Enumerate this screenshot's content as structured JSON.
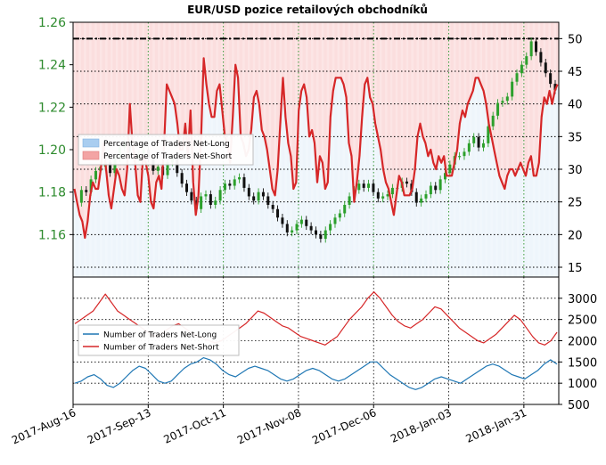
{
  "title": "EUR/USD pozice retailových obchodníků",
  "chart_data": [
    {
      "type": "line",
      "panel": "price-and-sentiment",
      "left_axis": {
        "ylim": [
          1.14,
          1.26
        ],
        "ticks": [
          1.16,
          1.18,
          1.2,
          1.22,
          1.24,
          1.26
        ],
        "tick_labels": [
          "1.16",
          "1.18",
          "1.20",
          "1.22",
          "1.24",
          "1.26"
        ],
        "color": "#2e8b2e"
      },
      "right_axis": {
        "ylim": [
          13.5,
          52.5
        ],
        "ticks": [
          15,
          20,
          25,
          30,
          35,
          40,
          45,
          50
        ],
        "tick_labels": [
          "15",
          "20",
          "25",
          "30",
          "35",
          "40",
          "45",
          "50"
        ]
      },
      "x": {
        "range": [
          "2017-08-16",
          "2018-02-13"
        ],
        "ticks": [
          "2017-08-16",
          "2017-09-13",
          "2017-10-11",
          "2017-11-08",
          "2017-12-06",
          "2018-01-03",
          "2018-01-31"
        ],
        "tick_labels": [
          "2017-Aug-16",
          "2017-Sep-13",
          "2017-Oct-11",
          "2017-Nov-08",
          "2017-Dec-06",
          "2018-Jan-03",
          "2018-Jan-31"
        ]
      },
      "reference_line": {
        "axis": "right",
        "value": 50
      },
      "grid": true,
      "legend": {
        "placement": "middle-left",
        "entries": [
          "Percentage of Traders Net-Long",
          "Percentage of Traders Net-Short"
        ],
        "colors": [
          "#a9cdf0",
          "#f3a4a4"
        ]
      },
      "series": [
        {
          "name": "Percentage of Traders Net-Short",
          "axis": "right",
          "color": "#d62728",
          "values": [
            29,
            28,
            26,
            24,
            22,
            20,
            19,
            18,
            21,
            24,
            27,
            30,
            28,
            25,
            23,
            21,
            20,
            22,
            25,
            28,
            31,
            34,
            33,
            30,
            28,
            26,
            24,
            22,
            20,
            21,
            23,
            22,
            24,
            27,
            32,
            37,
            42,
            38,
            35,
            33,
            31,
            29,
            27,
            30,
            32,
            29,
            23,
            30,
            33,
            37,
            40,
            38,
            35,
            33,
            31,
            30,
            28,
            28,
            32,
            36,
            40,
            35,
            33,
            31,
            29,
            27,
            26,
            30,
            33,
            36,
            35,
            32,
            29,
            27,
            26,
            28,
            31,
            34,
            33,
            30,
            26,
            24,
            28,
            31,
            33,
            35,
            37,
            40,
            43,
            42,
            40,
            38,
            36,
            34,
            32,
            30,
            28,
            26,
            24,
            22,
            24,
            26,
            27,
            27,
            27,
            28,
            30,
            32,
            34,
            32,
            30,
            29,
            30,
            31,
            32,
            31,
            29,
            30,
            30,
            31,
            39,
            41,
            40,
            40,
            41,
            42
          ],
          "visual_values": [
            27,
            25,
            23,
            22,
            19.5,
            22,
            26,
            28,
            27,
            27,
            30,
            34,
            30,
            26,
            24,
            27,
            30,
            29,
            27,
            26,
            30,
            40,
            34,
            31,
            26,
            25,
            32,
            31,
            29,
            25,
            24,
            28,
            29,
            27,
            34,
            43,
            42,
            41,
            40,
            37,
            33,
            33,
            37,
            32,
            39,
            28,
            23,
            26,
            35,
            47,
            43,
            40,
            38,
            38,
            42,
            43,
            39,
            35,
            34,
            31,
            38,
            46,
            44,
            35,
            34,
            32,
            33,
            36,
            41,
            42,
            40,
            36,
            35,
            33,
            30,
            27,
            26,
            30,
            37,
            44,
            38,
            34,
            32,
            27,
            28,
            39,
            42,
            43,
            41,
            35,
            36,
            34,
            28,
            32,
            31,
            27,
            28,
            38,
            42,
            44,
            44,
            44,
            43,
            41,
            34,
            32,
            25,
            28,
            32,
            38,
            43,
            44,
            41,
            40,
            37,
            35,
            33,
            30,
            28,
            27,
            25,
            23,
            26,
            29,
            28,
            26,
            26,
            26,
            27,
            30,
            35,
            37,
            35,
            34,
            32,
            33,
            31,
            30,
            32,
            31,
            32,
            29,
            29,
            29,
            31,
            33,
            37,
            39,
            38,
            40,
            41,
            42,
            44,
            44,
            43,
            42,
            40,
            37,
            35,
            33,
            31,
            29,
            28,
            27,
            29,
            30,
            30,
            29,
            30,
            31,
            30,
            29,
            31,
            32,
            29,
            29,
            31,
            38,
            41,
            40,
            42,
            40,
            42,
            43
          ]
        },
        {
          "name": "EUR/USD price",
          "axis": "left",
          "color": "#000000",
          "values": [
            1.175,
            1.181,
            1.18,
            1.186,
            1.19,
            1.192,
            1.194,
            1.189,
            1.196,
            1.201,
            1.203,
            1.199,
            1.196,
            1.198,
            1.2,
            1.196,
            1.19,
            1.192,
            1.188,
            1.194,
            1.196,
            1.189,
            1.184,
            1.18,
            1.176,
            1.172,
            1.178,
            1.179,
            1.174,
            1.176,
            1.181,
            1.184,
            1.183,
            1.186,
            1.187,
            1.182,
            1.178,
            1.176,
            1.18,
            1.178,
            1.174,
            1.172,
            1.168,
            1.165,
            1.161,
            1.162,
            1.165,
            1.167,
            1.164,
            1.162,
            1.16,
            1.158,
            1.162,
            1.165,
            1.168,
            1.17,
            1.174,
            1.178,
            1.181,
            1.184,
            1.182,
            1.184,
            1.18,
            1.177,
            1.178,
            1.179,
            1.182,
            1.182,
            1.185,
            1.184,
            1.18,
            1.175,
            1.177,
            1.179,
            1.183,
            1.181,
            1.186,
            1.189,
            1.193,
            1.197,
            1.197,
            1.199,
            1.203,
            1.206,
            1.201,
            1.203,
            1.211,
            1.216,
            1.222,
            1.223,
            1.225,
            1.232,
            1.236,
            1.24,
            1.244,
            1.251,
            1.246,
            1.241,
            1.236,
            1.231,
            1.228
          ]
        }
      ]
    },
    {
      "type": "line",
      "panel": "trader-counts",
      "y_axis": {
        "ylim": [
          500,
          3500
        ],
        "ticks": [
          500,
          1000,
          1500,
          2000,
          2500,
          3000
        ],
        "tick_labels": [
          "500",
          "1000",
          "1500",
          "2000",
          "2500",
          "3000"
        ]
      },
      "grid": true,
      "legend": {
        "placement": "middle-left",
        "entries": [
          "Number of Traders Net-Long",
          "Number of Traders Net-Short"
        ],
        "colors": [
          "#1f77b4",
          "#d62728"
        ]
      },
      "series": [
        {
          "name": "Number of Traders Net-Long",
          "color": "#1f77b4",
          "values": [
            1000,
            1050,
            1150,
            1200,
            1100,
            950,
            900,
            1000,
            1150,
            1300,
            1400,
            1350,
            1200,
            1050,
            1000,
            1050,
            1200,
            1350,
            1450,
            1500,
            1600,
            1550,
            1450,
            1300,
            1200,
            1150,
            1250,
            1350,
            1400,
            1350,
            1300,
            1200,
            1100,
            1050,
            1100,
            1200,
            1300,
            1350,
            1300,
            1200,
            1100,
            1050,
            1100,
            1200,
            1300,
            1400,
            1500,
            1500,
            1350,
            1200,
            1100,
            1000,
            900,
            850,
            900,
            1000,
            1100,
            1150,
            1100,
            1050,
            1000,
            1100,
            1200,
            1300,
            1400,
            1450,
            1400,
            1300,
            1200,
            1150,
            1100,
            1200,
            1300,
            1450,
            1550,
            1450
          ]
        },
        {
          "name": "Number of Traders Net-Short",
          "color": "#d62728",
          "values": [
            2400,
            2500,
            2600,
            2700,
            2900,
            3100,
            2900,
            2700,
            2600,
            2500,
            2400,
            2300,
            2200,
            2100,
            2150,
            2250,
            2350,
            2400,
            2300,
            2200,
            2100,
            2050,
            2000,
            1950,
            2000,
            2100,
            2200,
            2300,
            2400,
            2550,
            2700,
            2650,
            2550,
            2450,
            2350,
            2300,
            2200,
            2100,
            2050,
            2000,
            1950,
            1900,
            2000,
            2100,
            2300,
            2500,
            2650,
            2800,
            3000,
            3150,
            3000,
            2800,
            2600,
            2450,
            2350,
            2300,
            2400,
            2500,
            2650,
            2800,
            2750,
            2600,
            2450,
            2300,
            2200,
            2100,
            2000,
            1950,
            2050,
            2150,
            2300,
            2450,
            2600,
            2500,
            2300,
            2100,
            1950,
            1900,
            2000,
            2200
          ]
        }
      ]
    }
  ]
}
